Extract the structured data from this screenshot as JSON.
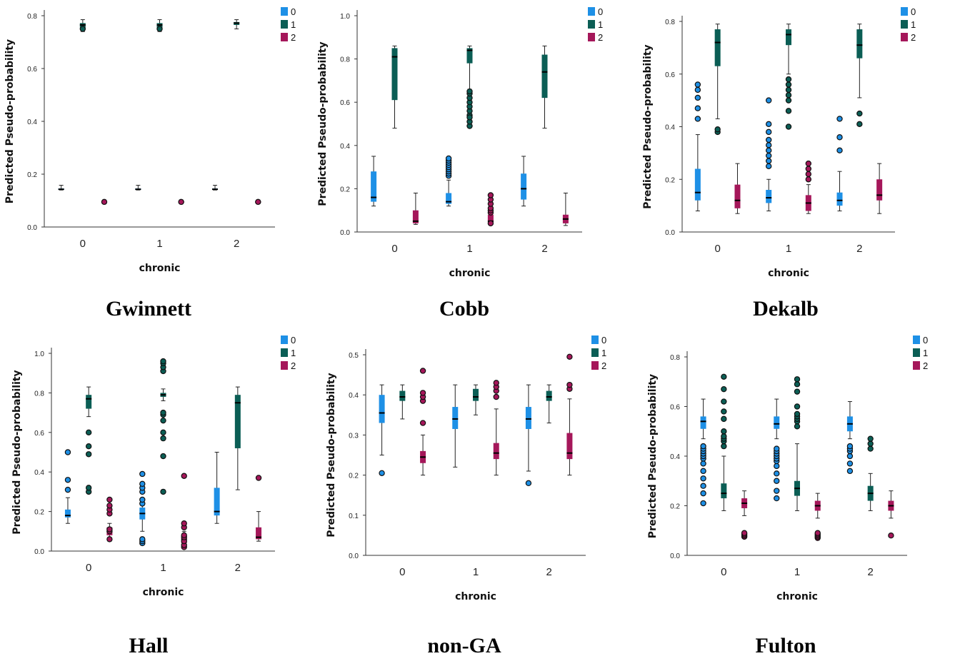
{
  "colors": {
    "0": "#1e90e6",
    "1": "#0b5e55",
    "2": "#a5175a"
  },
  "chart_data": [
    {
      "type": "box",
      "caption": "Gwinnett",
      "xlabel": "chronic",
      "ylabel": "Predicted Pseudo-probability",
      "categories": [
        "0",
        "1",
        "2"
      ],
      "ylim": [
        0,
        0.8
      ],
      "yticks": [
        "0.0",
        "0.2",
        "0.4",
        "0.6",
        "0.8"
      ],
      "legend": [
        "0",
        "1",
        "2"
      ],
      "series": [
        {
          "name": "0",
          "boxes": [
            {
              "min": 0.14,
              "q1": 0.141,
              "median": 0.143,
              "q3": 0.146,
              "max": 0.158,
              "outliers": []
            },
            {
              "min": 0.14,
              "q1": 0.141,
              "median": 0.143,
              "q3": 0.146,
              "max": 0.158,
              "outliers": []
            },
            {
              "min": 0.14,
              "q1": 0.141,
              "median": 0.143,
              "q3": 0.146,
              "max": 0.158,
              "outliers": []
            }
          ]
        },
        {
          "name": "1",
          "boxes": [
            {
              "min": 0.74,
              "q1": 0.755,
              "median": 0.765,
              "q3": 0.772,
              "max": 0.785,
              "outliers": [
                0.75
              ]
            },
            {
              "min": 0.74,
              "q1": 0.755,
              "median": 0.765,
              "q3": 0.772,
              "max": 0.785,
              "outliers": [
                0.75
              ]
            },
            {
              "min": 0.75,
              "q1": 0.765,
              "median": 0.772,
              "q3": 0.776,
              "max": 0.785,
              "outliers": []
            }
          ]
        },
        {
          "name": "2",
          "boxes": [
            {
              "min": 0.088,
              "q1": 0.092,
              "median": 0.095,
              "q3": 0.098,
              "max": 0.102,
              "outliers": [
                0.095
              ]
            },
            {
              "min": 0.088,
              "q1": 0.092,
              "median": 0.095,
              "q3": 0.098,
              "max": 0.102,
              "outliers": [
                0.095
              ]
            },
            {
              "min": 0.088,
              "q1": 0.092,
              "median": 0.095,
              "q3": 0.098,
              "max": 0.102,
              "outliers": [
                0.095
              ]
            }
          ]
        }
      ]
    },
    {
      "type": "box",
      "caption": "Cobb",
      "xlabel": "chronic",
      "ylabel": "Predicted Pseudo-probability",
      "categories": [
        "0",
        "1",
        "2"
      ],
      "ylim": [
        0,
        1.0
      ],
      "yticks": [
        "0.0",
        "0.2",
        "0.4",
        "0.6",
        "0.8",
        "1.0"
      ],
      "legend": [
        "0",
        "1",
        "2"
      ],
      "series": [
        {
          "name": "0",
          "boxes": [
            {
              "min": 0.12,
              "q1": 0.14,
              "median": 0.16,
              "q3": 0.28,
              "max": 0.35,
              "outliers": []
            },
            {
              "min": 0.12,
              "q1": 0.13,
              "median": 0.14,
              "q3": 0.18,
              "max": 0.24,
              "outliers": [
                0.26,
                0.27,
                0.28,
                0.29,
                0.3,
                0.31,
                0.32,
                0.33,
                0.34
              ]
            },
            {
              "min": 0.12,
              "q1": 0.15,
              "median": 0.2,
              "q3": 0.27,
              "max": 0.35,
              "outliers": []
            }
          ]
        },
        {
          "name": "1",
          "boxes": [
            {
              "min": 0.48,
              "q1": 0.61,
              "median": 0.81,
              "q3": 0.85,
              "max": 0.86,
              "outliers": []
            },
            {
              "min": 0.66,
              "q1": 0.78,
              "median": 0.84,
              "q3": 0.85,
              "max": 0.86,
              "outliers": [
                0.54,
                0.56,
                0.58,
                0.6,
                0.62,
                0.64,
                0.65,
                0.49,
                0.51,
                0.53
              ]
            },
            {
              "min": 0.48,
              "q1": 0.62,
              "median": 0.74,
              "q3": 0.82,
              "max": 0.86,
              "outliers": []
            }
          ]
        },
        {
          "name": "2",
          "boxes": [
            {
              "min": 0.035,
              "q1": 0.04,
              "median": 0.05,
              "q3": 0.1,
              "max": 0.18,
              "outliers": []
            },
            {
              "min": 0.035,
              "q1": 0.04,
              "median": 0.05,
              "q3": 0.08,
              "max": 0.09,
              "outliers": [
                0.09,
                0.1,
                0.11,
                0.04,
                0.13,
                0.15,
                0.17
              ]
            },
            {
              "min": 0.03,
              "q1": 0.04,
              "median": 0.06,
              "q3": 0.08,
              "max": 0.18,
              "outliers": []
            }
          ]
        }
      ]
    },
    {
      "type": "box",
      "caption": "Dekalb",
      "xlabel": "chronic",
      "ylabel": "Predicted Pseudo-probability",
      "categories": [
        "0",
        "1",
        "2"
      ],
      "ylim": [
        0,
        0.8
      ],
      "yticks": [
        "0.0",
        "0.2",
        "0.4",
        "0.6",
        "0.8"
      ],
      "legend": [
        "0",
        "1",
        "2"
      ],
      "series": [
        {
          "name": "0",
          "boxes": [
            {
              "min": 0.08,
              "q1": 0.12,
              "median": 0.15,
              "q3": 0.24,
              "max": 0.37,
              "outliers": [
                0.43,
                0.47,
                0.51,
                0.54,
                0.56
              ]
            },
            {
              "min": 0.08,
              "q1": 0.11,
              "median": 0.13,
              "q3": 0.16,
              "max": 0.2,
              "outliers": [
                0.25,
                0.27,
                0.29,
                0.31,
                0.33,
                0.35,
                0.38,
                0.41,
                0.5
              ]
            },
            {
              "min": 0.08,
              "q1": 0.1,
              "median": 0.12,
              "q3": 0.15,
              "max": 0.23,
              "outliers": [
                0.31,
                0.36,
                0.43
              ]
            }
          ]
        },
        {
          "name": "1",
          "boxes": [
            {
              "min": 0.43,
              "q1": 0.63,
              "median": 0.72,
              "q3": 0.77,
              "max": 0.79,
              "outliers": [
                0.38,
                0.39
              ]
            },
            {
              "min": 0.6,
              "q1": 0.71,
              "median": 0.75,
              "q3": 0.77,
              "max": 0.79,
              "outliers": [
                0.5,
                0.52,
                0.54,
                0.56,
                0.58,
                0.46,
                0.4
              ]
            },
            {
              "min": 0.51,
              "q1": 0.66,
              "median": 0.71,
              "q3": 0.77,
              "max": 0.79,
              "outliers": [
                0.41,
                0.45
              ]
            }
          ]
        },
        {
          "name": "2",
          "boxes": [
            {
              "min": 0.07,
              "q1": 0.09,
              "median": 0.12,
              "q3": 0.18,
              "max": 0.26,
              "outliers": []
            },
            {
              "min": 0.07,
              "q1": 0.08,
              "median": 0.11,
              "q3": 0.14,
              "max": 0.18,
              "outliers": [
                0.2,
                0.22,
                0.24,
                0.26
              ]
            },
            {
              "min": 0.07,
              "q1": 0.12,
              "median": 0.14,
              "q3": 0.2,
              "max": 0.26,
              "outliers": []
            }
          ]
        }
      ]
    },
    {
      "type": "box",
      "caption": "Hall",
      "xlabel": "chronic",
      "ylabel": "Predicted Pseudo-probability",
      "categories": [
        "0",
        "1",
        "2"
      ],
      "ylim": [
        0,
        1.0
      ],
      "yticks": [
        "0.0",
        "0.2",
        "0.4",
        "0.6",
        "0.8",
        "1.0"
      ],
      "legend": [
        "0",
        "1",
        "2"
      ],
      "series": [
        {
          "name": "0",
          "boxes": [
            {
              "min": 0.14,
              "q1": 0.17,
              "median": 0.18,
              "q3": 0.21,
              "max": 0.27,
              "outliers": [
                0.31,
                0.36,
                0.5
              ]
            },
            {
              "min": 0.1,
              "q1": 0.16,
              "median": 0.19,
              "q3": 0.22,
              "max": 0.26,
              "outliers": [
                0.04,
                0.05,
                0.06,
                0.24,
                0.26,
                0.3,
                0.32,
                0.34,
                0.39
              ]
            },
            {
              "min": 0.14,
              "q1": 0.18,
              "median": 0.2,
              "q3": 0.32,
              "max": 0.5,
              "outliers": []
            }
          ]
        },
        {
          "name": "1",
          "boxes": [
            {
              "min": 0.68,
              "q1": 0.72,
              "median": 0.77,
              "q3": 0.79,
              "max": 0.83,
              "outliers": [
                0.3,
                0.32,
                0.49,
                0.53,
                0.6
              ]
            },
            {
              "min": 0.76,
              "q1": 0.78,
              "median": 0.79,
              "q3": 0.8,
              "max": 0.82,
              "outliers": [
                0.3,
                0.48,
                0.57,
                0.6,
                0.66,
                0.69,
                0.7,
                0.91,
                0.93,
                0.95,
                0.96
              ]
            },
            {
              "min": 0.31,
              "q1": 0.52,
              "median": 0.75,
              "q3": 0.79,
              "max": 0.83,
              "outliers": []
            }
          ]
        },
        {
          "name": "2",
          "boxes": [
            {
              "min": 0.05,
              "q1": 0.08,
              "median": 0.1,
              "q3": 0.12,
              "max": 0.14,
              "outliers": [
                0.06,
                0.1,
                0.11,
                0.19,
                0.21,
                0.23,
                0.26
              ]
            },
            {
              "min": 0.03,
              "q1": 0.04,
              "median": 0.06,
              "q3": 0.08,
              "max": 0.1,
              "outliers": [
                0.02,
                0.03,
                0.05,
                0.07,
                0.08,
                0.12,
                0.14,
                0.38
              ]
            },
            {
              "min": 0.05,
              "q1": 0.06,
              "median": 0.07,
              "q3": 0.12,
              "max": 0.2,
              "outliers": [
                0.37
              ]
            }
          ]
        }
      ]
    },
    {
      "type": "box",
      "caption": "non-GA",
      "xlabel": "chronic",
      "ylabel": "Predicted Pseudo-probability",
      "categories": [
        "0",
        "1",
        "2"
      ],
      "ylim": [
        0,
        0.5
      ],
      "yticks": [
        "0.0",
        "0.1",
        "0.2",
        "0.3",
        "0.4",
        "0.5"
      ],
      "legend": [
        "0",
        "1",
        "2"
      ],
      "series": [
        {
          "name": "0",
          "boxes": [
            {
              "min": 0.25,
              "q1": 0.33,
              "median": 0.355,
              "q3": 0.4,
              "max": 0.425,
              "outliers": [
                0.205
              ]
            },
            {
              "min": 0.22,
              "q1": 0.315,
              "median": 0.34,
              "q3": 0.37,
              "max": 0.425,
              "outliers": []
            },
            {
              "min": 0.21,
              "q1": 0.315,
              "median": 0.34,
              "q3": 0.37,
              "max": 0.425,
              "outliers": [
                0.18
              ]
            }
          ]
        },
        {
          "name": "1",
          "boxes": [
            {
              "min": 0.34,
              "q1": 0.385,
              "median": 0.395,
              "q3": 0.41,
              "max": 0.425,
              "outliers": []
            },
            {
              "min": 0.35,
              "q1": 0.385,
              "median": 0.395,
              "q3": 0.415,
              "max": 0.425,
              "outliers": []
            },
            {
              "min": 0.33,
              "q1": 0.385,
              "median": 0.395,
              "q3": 0.41,
              "max": 0.425,
              "outliers": []
            }
          ]
        },
        {
          "name": "2",
          "boxes": [
            {
              "min": 0.2,
              "q1": 0.23,
              "median": 0.245,
              "q3": 0.26,
              "max": 0.3,
              "outliers": [
                0.33,
                0.385,
                0.395,
                0.405,
                0.46
              ]
            },
            {
              "min": 0.2,
              "q1": 0.24,
              "median": 0.255,
              "q3": 0.28,
              "max": 0.365,
              "outliers": [
                0.395,
                0.41,
                0.42,
                0.43
              ]
            },
            {
              "min": 0.2,
              "q1": 0.24,
              "median": 0.255,
              "q3": 0.305,
              "max": 0.39,
              "outliers": [
                0.415,
                0.425,
                0.495
              ]
            }
          ]
        }
      ]
    },
    {
      "type": "box",
      "caption": "Fulton",
      "xlabel": "chronic",
      "ylabel": "Predicted Pseudo-probability",
      "categories": [
        "0",
        "1",
        "2"
      ],
      "ylim": [
        0,
        0.8
      ],
      "yticks": [
        "0.0",
        "0.2",
        "0.4",
        "0.6",
        "0.8"
      ],
      "legend": [
        "0",
        "1",
        "2"
      ],
      "series": [
        {
          "name": "0",
          "boxes": [
            {
              "min": 0.47,
              "q1": 0.51,
              "median": 0.54,
              "q3": 0.56,
              "max": 0.63,
              "outliers": [
                0.21,
                0.25,
                0.28,
                0.31,
                0.34,
                0.37,
                0.39,
                0.4,
                0.41,
                0.42,
                0.43,
                0.44
              ]
            },
            {
              "min": 0.47,
              "q1": 0.51,
              "median": 0.53,
              "q3": 0.56,
              "max": 0.63,
              "outliers": [
                0.23,
                0.26,
                0.3,
                0.33,
                0.36,
                0.38,
                0.39,
                0.4,
                0.41,
                0.42,
                0.43
              ]
            },
            {
              "min": 0.47,
              "q1": 0.5,
              "median": 0.53,
              "q3": 0.56,
              "max": 0.62,
              "outliers": [
                0.34,
                0.37,
                0.4,
                0.42,
                0.43,
                0.44
              ]
            }
          ]
        },
        {
          "name": "1",
          "boxes": [
            {
              "min": 0.18,
              "q1": 0.23,
              "median": 0.25,
              "q3": 0.29,
              "max": 0.4,
              "outliers": [
                0.44,
                0.46,
                0.47,
                0.48,
                0.5,
                0.55,
                0.58,
                0.62,
                0.67,
                0.72
              ]
            },
            {
              "min": 0.18,
              "q1": 0.24,
              "median": 0.27,
              "q3": 0.3,
              "max": 0.45,
              "outliers": [
                0.52,
                0.54,
                0.55,
                0.56,
                0.57,
                0.6,
                0.66,
                0.69,
                0.71
              ]
            },
            {
              "min": 0.18,
              "q1": 0.22,
              "median": 0.25,
              "q3": 0.28,
              "max": 0.33,
              "outliers": [
                0.43,
                0.45,
                0.47
              ]
            }
          ]
        },
        {
          "name": "2",
          "boxes": [
            {
              "min": 0.16,
              "q1": 0.19,
              "median": 0.21,
              "q3": 0.23,
              "max": 0.26,
              "outliers": [
                0.075,
                0.08,
                0.085,
                0.09
              ]
            },
            {
              "min": 0.15,
              "q1": 0.18,
              "median": 0.2,
              "q3": 0.22,
              "max": 0.25,
              "outliers": [
                0.07,
                0.075,
                0.08,
                0.085,
                0.09
              ]
            },
            {
              "min": 0.15,
              "q1": 0.18,
              "median": 0.2,
              "q3": 0.22,
              "max": 0.26,
              "outliers": [
                0.08
              ]
            }
          ]
        }
      ]
    }
  ]
}
